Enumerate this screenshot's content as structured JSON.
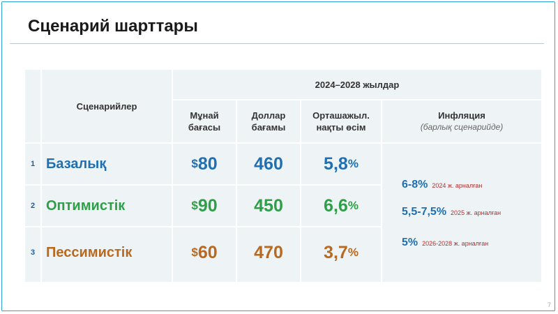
{
  "slide": {
    "title": "Сценарий шарттары",
    "page_number": "7"
  },
  "table": {
    "header": {
      "scenarios": "Сценарийлер",
      "period": "2024–2028 жылдар",
      "oil_price": "Мұнай\nбағасы",
      "dollar_rate": "Доллар\nбағамы",
      "growth": "Орташажыл.\nнақты өсім",
      "inflation": "Инфляция",
      "inflation_note": "(барлық сценарийде)"
    },
    "rows": [
      {
        "num": "1",
        "name": "Базалық",
        "oil_sign": "$",
        "oil": "80",
        "dollar": "460",
        "growth": "5,8",
        "pct": "%",
        "color": "#1f6fb2"
      },
      {
        "num": "2",
        "name": "Оптимистік",
        "oil_sign": "$",
        "oil": "90",
        "dollar": "450",
        "growth": "6,6",
        "pct": "%",
        "color": "#2e9e48"
      },
      {
        "num": "3",
        "name": "Пессимистік",
        "oil_sign": "$",
        "oil": "60",
        "dollar": "470",
        "growth": "3,7",
        "pct": "%",
        "color": "#b8691f"
      }
    ],
    "inflation": [
      {
        "value": "6-8%",
        "note": "2024 ж. арналған"
      },
      {
        "value": "5,5-7,5%",
        "note": "2025 ж. арналған"
      },
      {
        "value": "5%",
        "note": "2026-2028 ж. арналған"
      }
    ]
  },
  "colors": {
    "baseline": "#1f6fb2",
    "optimistic": "#2e9e48",
    "pessimistic": "#b8691f",
    "frame": "#2aa4d4"
  }
}
